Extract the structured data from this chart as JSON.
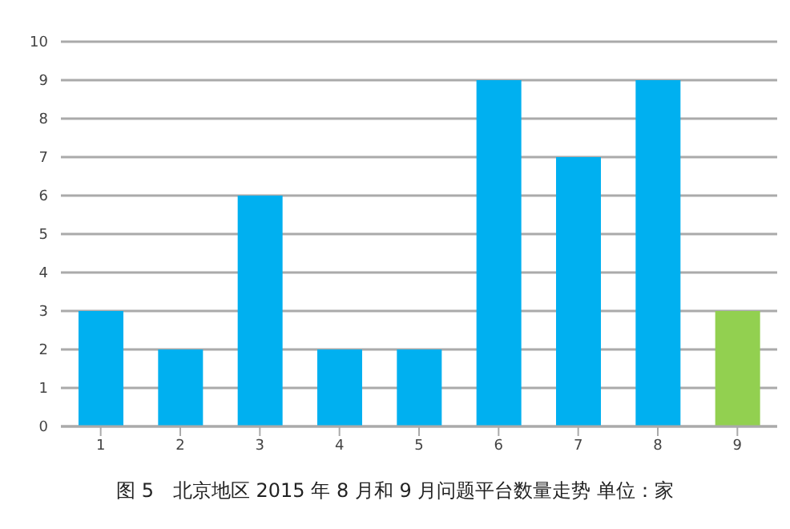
{
  "chart_data": {
    "type": "bar",
    "title": "图 5　北京地区 2015 年 8 月和 9 月问题平台数量走势 单位：家",
    "categories": [
      "1",
      "2",
      "3",
      "4",
      "5",
      "6",
      "7",
      "8",
      "9"
    ],
    "values": [
      3,
      2,
      6,
      2,
      2,
      9,
      7,
      9,
      3
    ],
    "colors": [
      "#00b0f0",
      "#00b0f0",
      "#00b0f0",
      "#00b0f0",
      "#00b0f0",
      "#00b0f0",
      "#00b0f0",
      "#00b0f0",
      "#92d050"
    ],
    "ylim": [
      0,
      10
    ],
    "yticks": [
      0,
      1,
      2,
      3,
      4,
      5,
      6,
      7,
      8,
      9,
      10
    ],
    "grid": "y",
    "legend": false
  }
}
